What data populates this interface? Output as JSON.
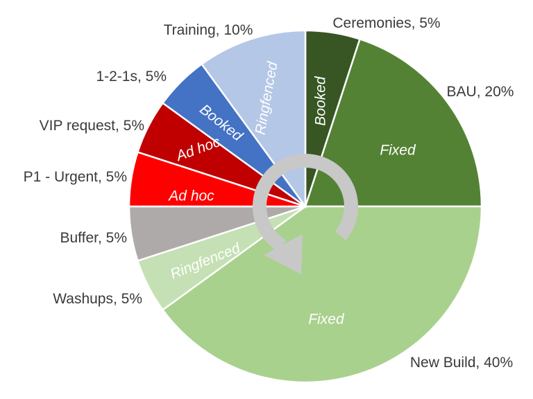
{
  "chart_data": {
    "type": "pie",
    "start_angle_deg": 0,
    "direction": "clockwise",
    "slices": [
      {
        "label": "Ceremonies, 5%",
        "category": "Ceremonies",
        "value": 5,
        "color": "#375623",
        "inner_label": "Booked"
      },
      {
        "label": "BAU, 20%",
        "category": "BAU",
        "value": 20,
        "color": "#548235",
        "inner_label": "Fixed"
      },
      {
        "label": "New Build, 40%",
        "category": "New Build",
        "value": 40,
        "color": "#a9d18e",
        "inner_label": "Fixed"
      },
      {
        "label": "Washups, 5%",
        "category": "Washups",
        "value": 5,
        "color": "#c5e0b4",
        "inner_label": "Ringfenced"
      },
      {
        "label": "Buffer, 5%",
        "category": "Buffer",
        "value": 5,
        "color": "#aeaaaa",
        "inner_label": ""
      },
      {
        "label": "P1 - Urgent, 5%",
        "category": "P1 - Urgent",
        "value": 5,
        "color": "#ff0000",
        "inner_label": "Ad hoc"
      },
      {
        "label": "VIP request, 5%",
        "category": "VIP request",
        "value": 5,
        "color": "#c00000",
        "inner_label": "Ad hoc"
      },
      {
        "label": "1-2-1s, 5%",
        "category": "1-2-1s",
        "value": 5,
        "color": "#4472c4",
        "inner_label": "Booked"
      },
      {
        "label": "Training, 10%",
        "category": "Training",
        "value": 10,
        "color": "#b4c7e7",
        "inner_label": "Ringfenced"
      }
    ],
    "center_icon": "clockwise-cycle-arrow-icon",
    "center_icon_color": "#c8c8c8"
  }
}
